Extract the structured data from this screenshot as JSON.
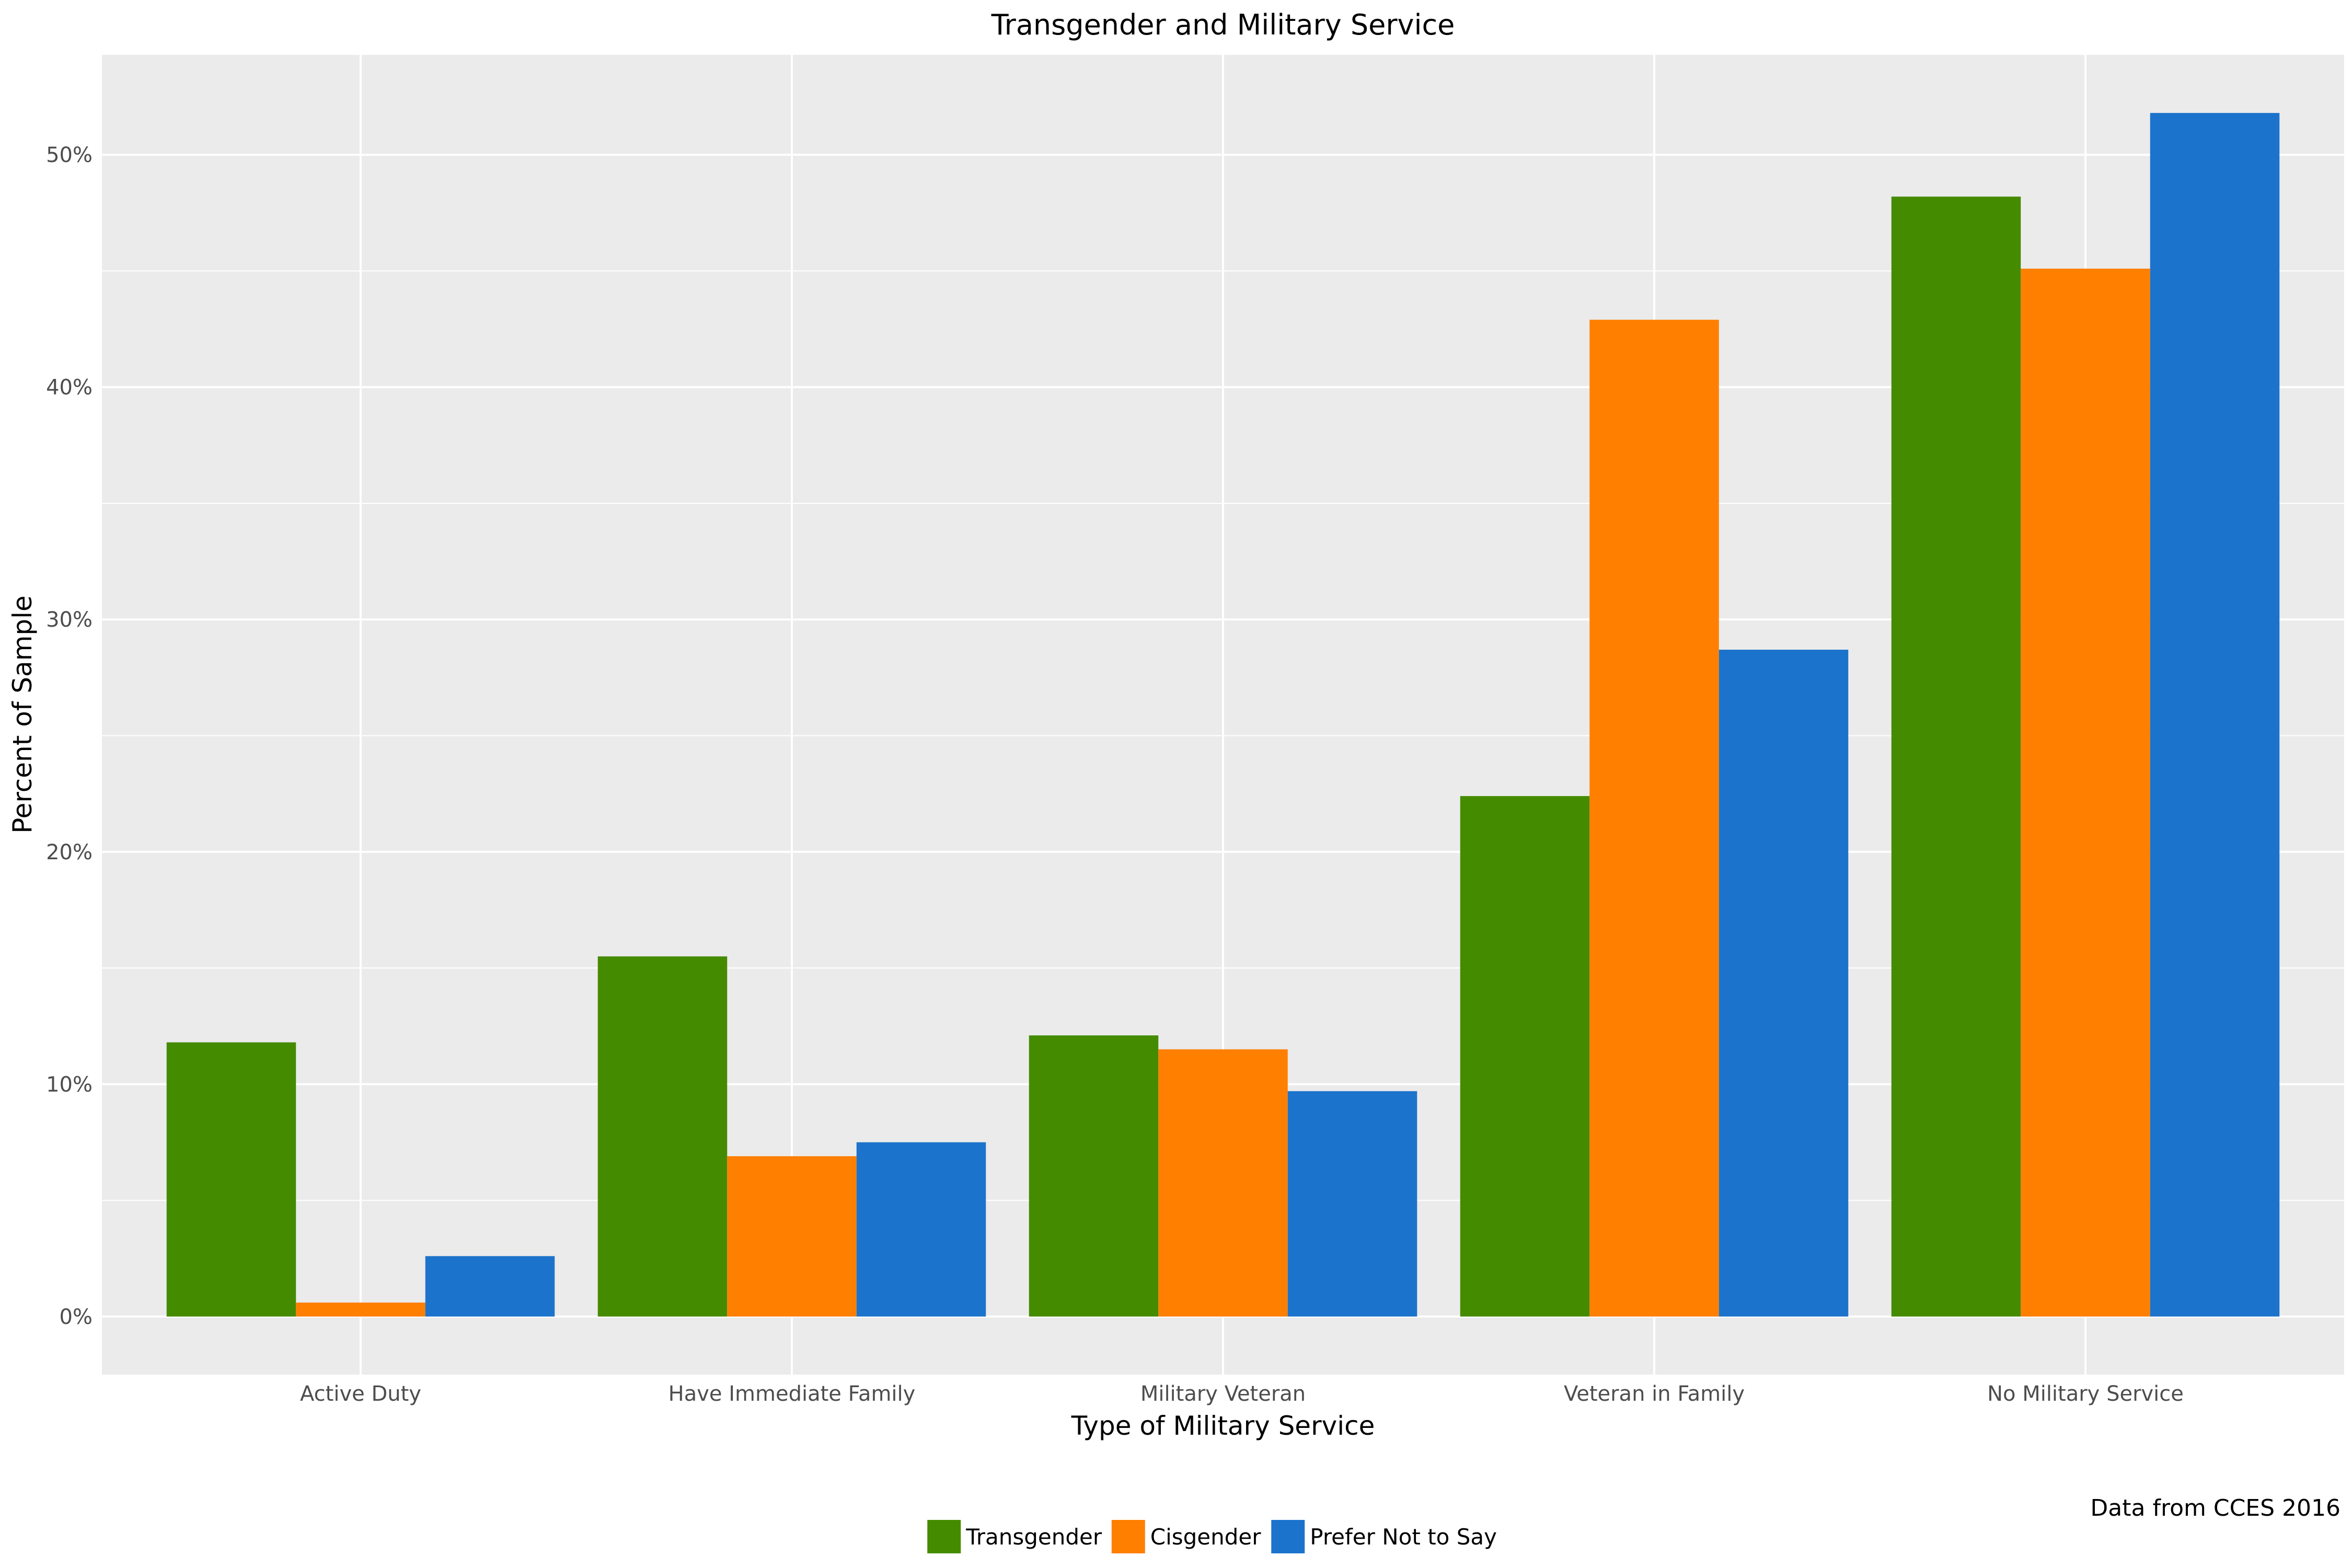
{
  "chart_data": {
    "type": "bar",
    "title": "Transgender and Military Service",
    "xlabel": "Type of Military Service",
    "ylabel": "Percent of Sample",
    "categories": [
      "Active Duty",
      "Have Immediate Family",
      "Military Veteran",
      "Veteran in Family",
      "No Military Service"
    ],
    "series": [
      {
        "name": "Transgender",
        "color": "#458B00",
        "values": [
          11.8,
          15.5,
          12.1,
          22.4,
          48.2
        ]
      },
      {
        "name": "Cisgender",
        "color": "#FF7F00",
        "values": [
          0.6,
          6.9,
          11.5,
          42.9,
          45.1
        ]
      },
      {
        "name": "Prefer Not to Say",
        "color": "#1C73CC",
        "values": [
          2.6,
          7.5,
          9.7,
          28.7,
          51.8
        ]
      }
    ],
    "ylim": [
      -2.5,
      54.3
    ],
    "y_ticks": [
      0,
      10,
      20,
      30,
      40,
      50
    ],
    "y_tick_labels": [
      "0%",
      "10%",
      "20%",
      "30%",
      "40%",
      "50%"
    ],
    "grid": true,
    "panel_background": "#EBEBEB",
    "legend_position": "bottom",
    "caption": "Data from CCES 2016"
  }
}
